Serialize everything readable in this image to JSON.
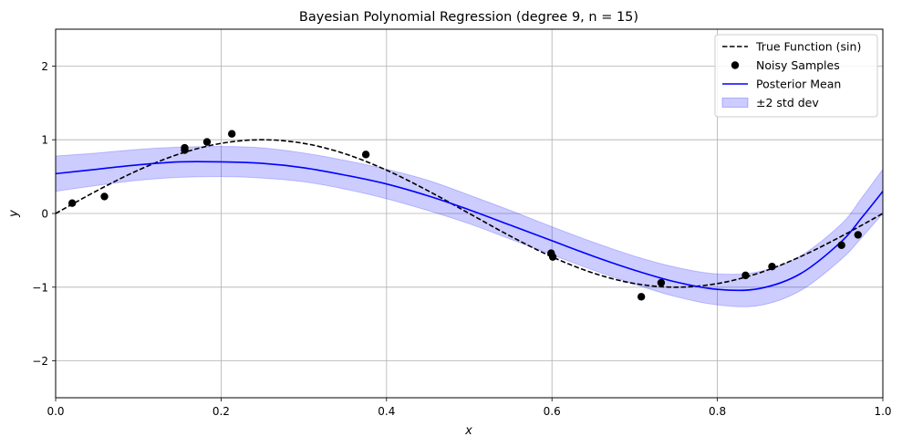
{
  "chart_data": {
    "type": "line",
    "title": "Bayesian Polynomial Regression (degree 9, n = 15)",
    "xlabel": "x",
    "ylabel": "y",
    "xlim": [
      0,
      1
    ],
    "ylim": [
      -2.5,
      2.5
    ],
    "x_ticks": [
      0.0,
      0.2,
      0.4,
      0.6,
      0.8,
      1.0
    ],
    "x_tick_labels": [
      "0.0",
      "0.2",
      "0.4",
      "0.6",
      "0.8",
      "1.0"
    ],
    "y_ticks": [
      -2,
      -1,
      0,
      1,
      2
    ],
    "y_tick_labels": [
      "−2",
      "−1",
      "0",
      "1",
      "2"
    ],
    "grid": true,
    "legend_position": "top-right",
    "legend": [
      {
        "label": "True Function (sin)",
        "kind": "dashed-line",
        "color": "#000000"
      },
      {
        "label": "Noisy Samples",
        "kind": "marker",
        "color": "#000000"
      },
      {
        "label": "Posterior Mean",
        "kind": "line",
        "color": "#0000ff"
      },
      {
        "label": "±2 std dev",
        "kind": "band",
        "color": "#0000ff"
      }
    ],
    "series": [
      {
        "name": "True Function (sin)",
        "type": "line",
        "style": "dashed",
        "color": "#000000",
        "x": [
          0.0,
          0.05,
          0.1,
          0.15,
          0.2,
          0.25,
          0.3,
          0.35,
          0.4,
          0.45,
          0.5,
          0.55,
          0.6,
          0.65,
          0.7,
          0.75,
          0.8,
          0.85,
          0.9,
          0.95,
          1.0
        ],
        "y": [
          0.0,
          0.309,
          0.588,
          0.809,
          0.951,
          1.0,
          0.951,
          0.809,
          0.588,
          0.309,
          0.0,
          -0.309,
          -0.588,
          -0.809,
          -0.951,
          -1.0,
          -0.951,
          -0.809,
          -0.588,
          -0.309,
          0.0
        ]
      },
      {
        "name": "Noisy Samples",
        "type": "scatter",
        "color": "#000000",
        "x": [
          0.02,
          0.059,
          0.156,
          0.156,
          0.183,
          0.213,
          0.375,
          0.599,
          0.601,
          0.708,
          0.732,
          0.834,
          0.866,
          0.95,
          0.97
        ],
        "y": [
          0.14,
          0.23,
          0.89,
          0.86,
          0.97,
          1.08,
          0.8,
          -0.54,
          -0.59,
          -1.13,
          -0.94,
          -0.84,
          -0.72,
          -0.43,
          -0.29
        ]
      },
      {
        "name": "Posterior Mean",
        "type": "line",
        "color": "#0000ff",
        "x": [
          0.0,
          0.05,
          0.1,
          0.15,
          0.2,
          0.25,
          0.3,
          0.35,
          0.4,
          0.45,
          0.5,
          0.55,
          0.6,
          0.65,
          0.7,
          0.75,
          0.8,
          0.85,
          0.9,
          0.95,
          0.975,
          1.0
        ],
        "y": [
          0.54,
          0.6,
          0.66,
          0.7,
          0.7,
          0.68,
          0.62,
          0.52,
          0.4,
          0.24,
          0.05,
          -0.16,
          -0.37,
          -0.58,
          -0.77,
          -0.93,
          -1.03,
          -1.02,
          -0.82,
          -0.38,
          -0.05,
          0.3
        ]
      },
      {
        "name": "±2 std dev",
        "type": "band",
        "color": "#0000ff",
        "x": [
          0.0,
          0.05,
          0.1,
          0.15,
          0.2,
          0.25,
          0.3,
          0.35,
          0.4,
          0.45,
          0.5,
          0.55,
          0.6,
          0.65,
          0.7,
          0.75,
          0.8,
          0.85,
          0.9,
          0.95,
          0.975,
          1.0
        ],
        "lower": [
          0.3,
          0.38,
          0.45,
          0.49,
          0.5,
          0.48,
          0.43,
          0.33,
          0.2,
          0.04,
          -0.14,
          -0.35,
          -0.56,
          -0.77,
          -0.96,
          -1.13,
          -1.24,
          -1.25,
          -1.05,
          -0.62,
          -0.32,
          0.0
        ],
        "upper": [
          0.78,
          0.82,
          0.87,
          0.9,
          0.91,
          0.89,
          0.82,
          0.72,
          0.6,
          0.45,
          0.25,
          0.04,
          -0.18,
          -0.39,
          -0.58,
          -0.73,
          -0.82,
          -0.79,
          -0.58,
          -0.14,
          0.22,
          0.6
        ]
      }
    ]
  }
}
